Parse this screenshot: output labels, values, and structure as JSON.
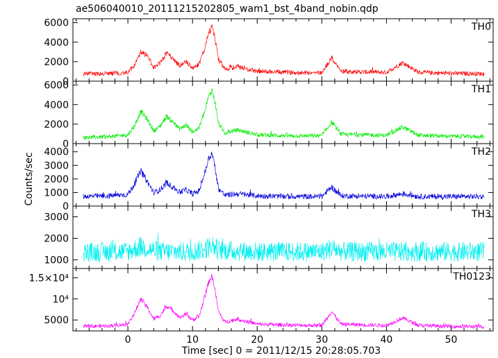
{
  "chart_data": {
    "type": "line",
    "title": "ae506040010_20111215202805_wam1_bst_4band_nobin.qdp",
    "xlabel": "Time [sec] 0 = 2011/12/15 20:28:05.703",
    "ylabel": "Counts/sec",
    "xlim": [
      -8.5,
      56.5
    ],
    "x_ticks": [
      0,
      10,
      20,
      30,
      40,
      50
    ],
    "grid": false,
    "panels": [
      {
        "name": "TH0",
        "color": "#ff0000",
        "ylim": [
          0,
          6400
        ],
        "y_ticks": [
          0,
          2000,
          4000,
          6000
        ],
        "y_tick_labels": [
          "0",
          "2000",
          "4000",
          "6000"
        ],
        "baseline": 600,
        "noise": 350,
        "x": [
          -8,
          -3,
          0,
          1,
          2,
          3,
          4,
          5,
          6,
          7,
          8,
          9,
          10,
          11,
          12,
          12.5,
          13,
          13.5,
          14,
          15,
          17,
          20,
          25,
          30,
          31.5,
          33,
          40,
          42.5,
          45,
          50,
          56
        ],
        "values": [
          700,
          800,
          900,
          1600,
          3000,
          2600,
          1400,
          1900,
          2900,
          2300,
          1600,
          2000,
          1300,
          1700,
          3600,
          4900,
          5600,
          4300,
          2300,
          1200,
          1500,
          1000,
          900,
          850,
          2400,
          1000,
          900,
          1900,
          900,
          800,
          750
        ]
      },
      {
        "name": "TH1",
        "color": "#00ee00",
        "ylim": [
          0,
          6400
        ],
        "y_ticks": [
          0,
          2000,
          4000,
          6000
        ],
        "y_tick_labels": [
          "0",
          "2000",
          "4000",
          "6000"
        ],
        "baseline": 550,
        "noise": 330,
        "x": [
          -8,
          -3,
          0,
          1,
          2,
          3,
          4,
          5,
          6,
          7,
          8,
          9,
          10,
          11,
          12,
          12.5,
          13,
          13.5,
          14,
          15,
          17,
          20,
          25,
          30,
          31.5,
          33,
          40,
          42.5,
          45,
          50,
          56
        ],
        "values": [
          600,
          700,
          900,
          1800,
          3300,
          2500,
          1300,
          1800,
          2800,
          2200,
          1500,
          1900,
          1200,
          1600,
          3500,
          4800,
          5500,
          4200,
          2100,
          1100,
          1400,
          900,
          800,
          800,
          2200,
          950,
          850,
          1700,
          850,
          750,
          700
        ]
      },
      {
        "name": "TH2",
        "color": "#0000dd",
        "ylim": [
          0,
          4600
        ],
        "y_ticks": [
          0,
          1000,
          2000,
          3000,
          4000
        ],
        "y_tick_labels": [
          "0",
          "1000",
          "2000",
          "3000",
          "4000"
        ],
        "baseline": 550,
        "noise": 300,
        "x": [
          -8,
          -3,
          0,
          1,
          2,
          3,
          4,
          5,
          6,
          7,
          8,
          9,
          10,
          11,
          12,
          12.5,
          13,
          13.5,
          14,
          15,
          17,
          20,
          25,
          30,
          31.5,
          33,
          40,
          42.5,
          45,
          50,
          56
        ],
        "values": [
          700,
          750,
          850,
          1600,
          2600,
          1800,
          1000,
          1200,
          1700,
          1400,
          1000,
          1200,
          900,
          1100,
          2600,
          3500,
          3900,
          2800,
          1300,
          800,
          900,
          750,
          700,
          700,
          1400,
          750,
          700,
          900,
          700,
          700,
          700
        ]
      },
      {
        "name": "TH3",
        "color": "#00f0f0",
        "ylim": [
          600,
          3500
        ],
        "y_ticks": [
          1000,
          2000,
          3000
        ],
        "y_tick_labels": [
          "1000",
          "2000",
          "3000"
        ],
        "baseline": 1000,
        "noise": 500,
        "x": [
          -8,
          0,
          1,
          2,
          5,
          10,
          12,
          13,
          14,
          20,
          30,
          31.5,
          33,
          40,
          56
        ],
        "values": [
          1350,
          1380,
          1500,
          1600,
          1380,
          1380,
          1500,
          1700,
          1450,
          1380,
          1380,
          1550,
          1380,
          1380,
          1380
        ]
      },
      {
        "name": "TH0123",
        "color": "#ff00ff",
        "ylim": [
          2400,
          17200
        ],
        "y_ticks": [
          5000,
          10000,
          15000
        ],
        "y_tick_labels": [
          "5000",
          "10⁴",
          "1.5×10⁴"
        ],
        "baseline": 3000,
        "noise": 650,
        "x": [
          -8,
          -3,
          0,
          1,
          2,
          3,
          4,
          5,
          6,
          7,
          8,
          9,
          10,
          11,
          12,
          12.5,
          13,
          13.5,
          14,
          15,
          17,
          20,
          25,
          30,
          31.5,
          33,
          40,
          42.5,
          45,
          50,
          56
        ],
        "values": [
          3400,
          3600,
          4000,
          6500,
          10000,
          8000,
          5200,
          6000,
          8300,
          7200,
          5600,
          6400,
          5000,
          5800,
          11000,
          14000,
          15500,
          12000,
          7000,
          4500,
          5200,
          4000,
          3800,
          3700,
          7000,
          4000,
          3700,
          5500,
          3700,
          3500,
          3400
        ]
      }
    ]
  }
}
